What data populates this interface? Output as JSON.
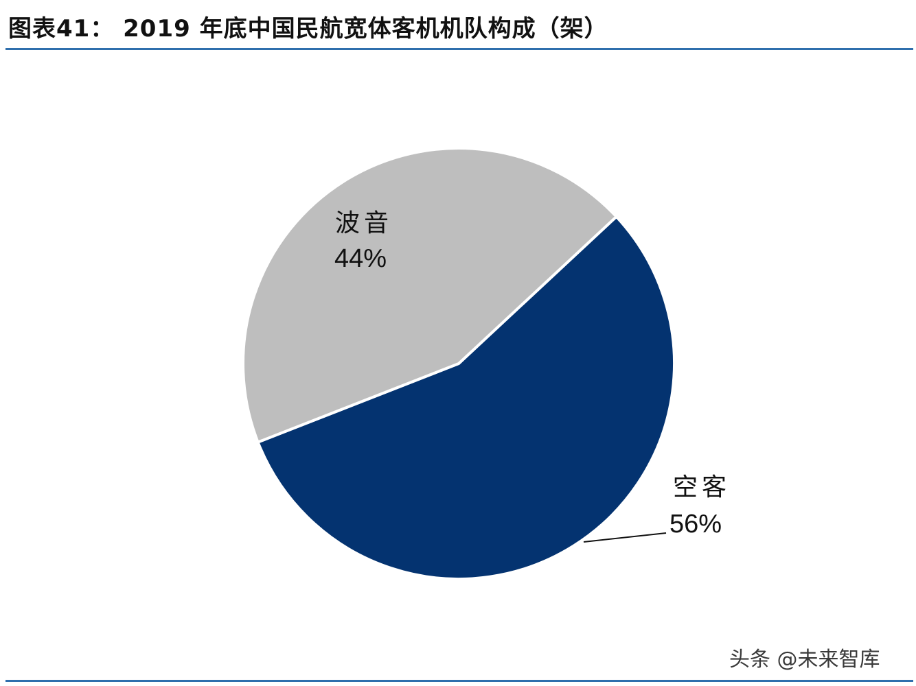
{
  "header": {
    "title": "图表41：  2019 年底中国民航宽体客机机队构成（架）"
  },
  "watermark": "头条 @未来智库",
  "chart_data": {
    "type": "pie",
    "title": "2019 年底中国民航宽体客机机队构成（架）",
    "slices": [
      {
        "name": "空客",
        "value": 56,
        "value_label": "56%",
        "color": "#043370"
      },
      {
        "name": "波音",
        "value": 44,
        "value_label": "44%",
        "color": "#bebebe"
      }
    ],
    "start_angle_deg": 47,
    "direction": "clockwise",
    "legend": "none"
  }
}
